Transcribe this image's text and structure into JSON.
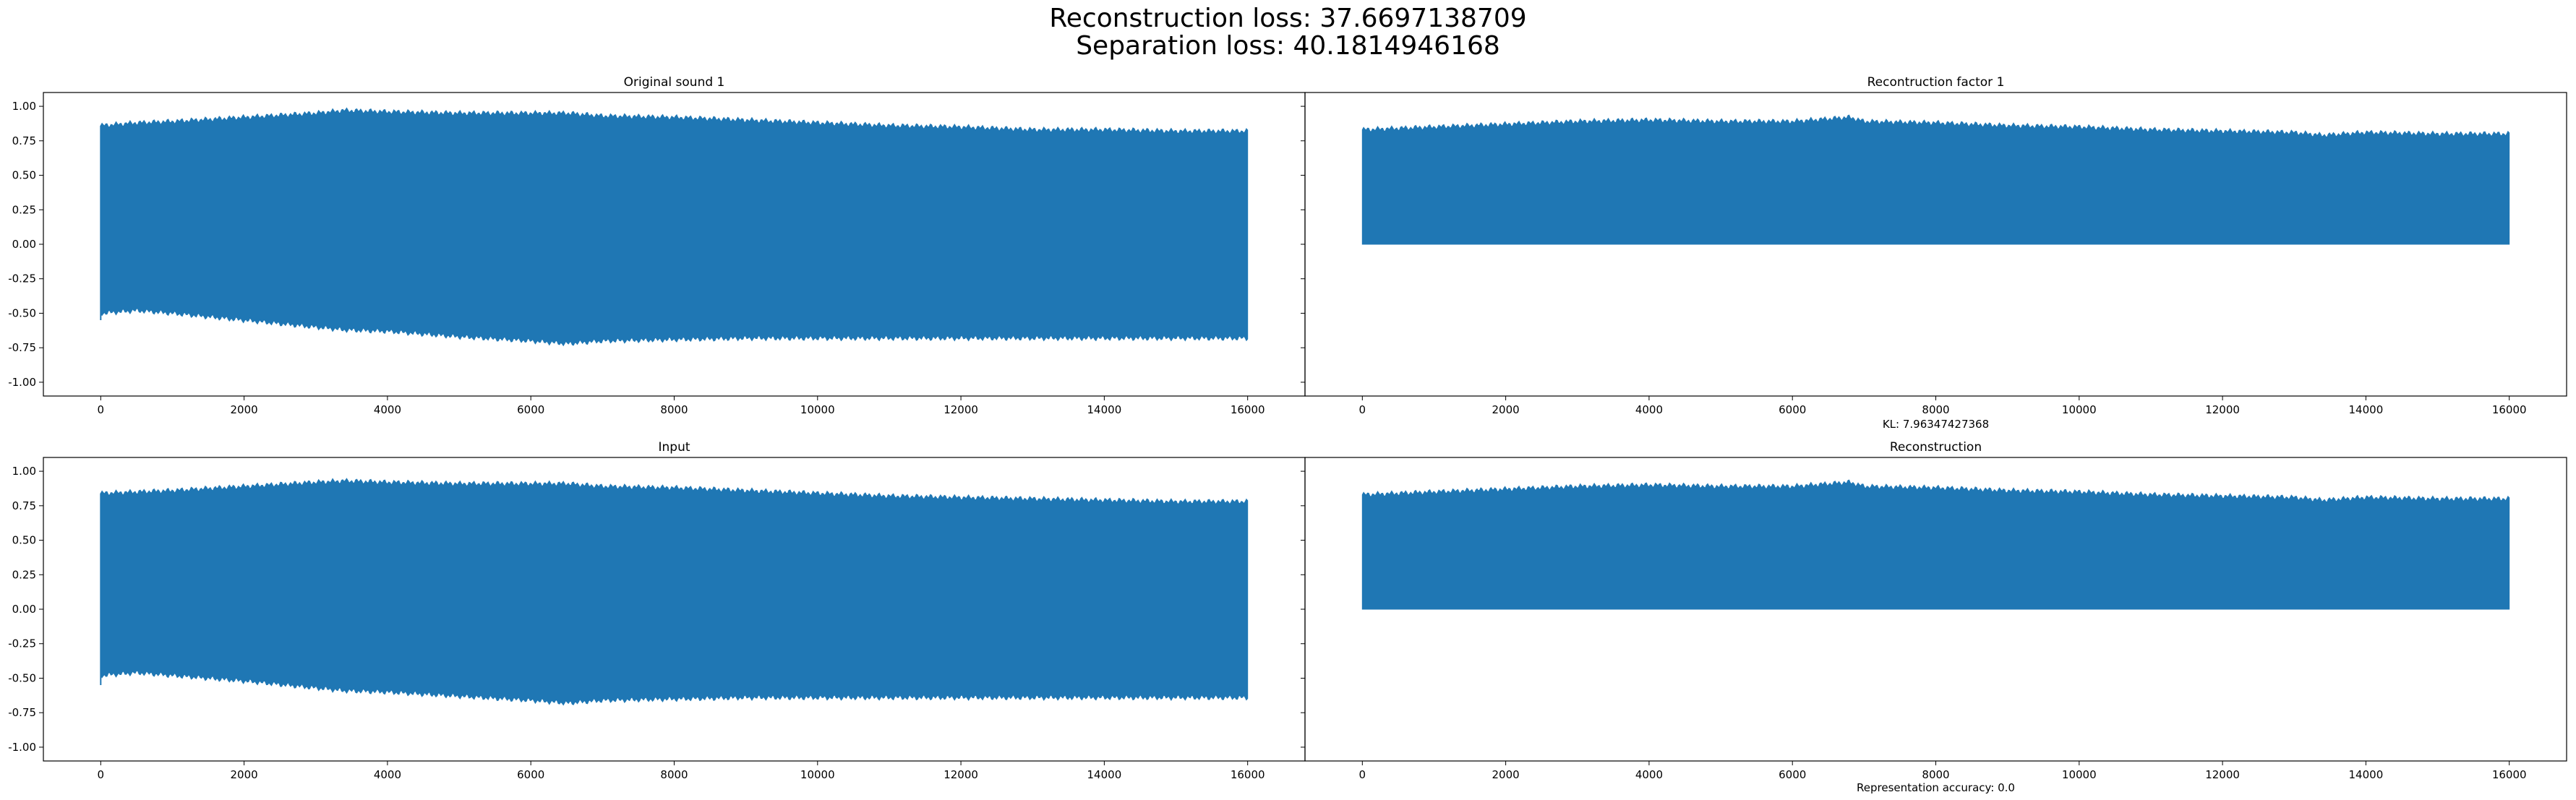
{
  "figure": {
    "title_line1": "Reconstruction loss: 37.6697138709",
    "title_line2": "Separation loss: 40.1814946168",
    "colors": {
      "series": "#1f77b4",
      "axes": "#000000"
    }
  },
  "chart_data": [
    {
      "type": "line",
      "title": "Original sound 1",
      "xlabel": "",
      "ylabel": "",
      "xlim": [
        -800,
        16800
      ],
      "ylim": [
        -1.1,
        1.1
      ],
      "xticks": [
        0,
        2000,
        4000,
        6000,
        8000,
        10000,
        12000,
        14000,
        16000
      ],
      "yticks": [
        -1.0,
        -0.75,
        -0.5,
        -0.25,
        0.0,
        0.25,
        0.5,
        0.75,
        1.0
      ],
      "x_range": [
        0,
        16000
      ],
      "envelope_x": [
        0,
        500,
        1000,
        2000,
        3000,
        3400,
        4000,
        5000,
        6000,
        6500,
        7000,
        8000,
        9000,
        10000,
        11000,
        12000,
        13000,
        14000,
        15000,
        16000
      ],
      "upper_envelope": [
        0.86,
        0.88,
        0.89,
        0.92,
        0.95,
        0.97,
        0.96,
        0.95,
        0.95,
        0.95,
        0.93,
        0.92,
        0.9,
        0.88,
        0.86,
        0.85,
        0.83,
        0.83,
        0.82,
        0.82
      ],
      "lower_envelope": [
        -0.5,
        -0.48,
        -0.5,
        -0.55,
        -0.6,
        -0.62,
        -0.63,
        -0.67,
        -0.7,
        -0.72,
        -0.7,
        -0.69,
        -0.68,
        -0.68,
        -0.68,
        -0.68,
        -0.68,
        -0.68,
        -0.68,
        -0.68
      ],
      "grid": false
    },
    {
      "type": "line",
      "title": "Recontruction factor 1",
      "xlabel": "KL: 7.96347427368",
      "ylabel": "",
      "xlim": [
        -800,
        16800
      ],
      "ylim": [
        -1.1,
        1.1
      ],
      "xticks": [
        0,
        2000,
        4000,
        6000,
        8000,
        10000,
        12000,
        14000,
        16000
      ],
      "yticks": [
        -1.0,
        -0.75,
        -0.5,
        -0.25,
        0.0,
        0.25,
        0.5,
        0.75,
        1.0
      ],
      "x_range": [
        0,
        16000
      ],
      "envelope_x": [
        0,
        1000,
        2000,
        3000,
        4000,
        5000,
        6000,
        6800,
        7000,
        8000,
        9000,
        10000,
        11000,
        12000,
        13000,
        13400,
        14000,
        15000,
        16000
      ],
      "upper_envelope": [
        0.83,
        0.85,
        0.87,
        0.89,
        0.9,
        0.89,
        0.89,
        0.92,
        0.89,
        0.88,
        0.86,
        0.85,
        0.83,
        0.82,
        0.81,
        0.79,
        0.81,
        0.8,
        0.8
      ],
      "lower_envelope": [
        0.0,
        0.0,
        0.0,
        0.0,
        0.0,
        0.0,
        0.0,
        0.0,
        0.0,
        0.0,
        0.0,
        0.0,
        0.0,
        0.0,
        0.0,
        0.0,
        0.0,
        0.0,
        0.0
      ],
      "grid": false
    },
    {
      "type": "line",
      "title": "Input",
      "xlabel": "",
      "ylabel": "",
      "xlim": [
        -800,
        16800
      ],
      "ylim": [
        -1.1,
        1.1
      ],
      "xticks": [
        0,
        2000,
        4000,
        6000,
        8000,
        10000,
        12000,
        14000,
        16000
      ],
      "yticks": [
        -1.0,
        -0.75,
        -0.5,
        -0.25,
        0.0,
        0.25,
        0.5,
        0.75,
        1.0
      ],
      "x_range": [
        0,
        16000
      ],
      "envelope_x": [
        0,
        500,
        1000,
        2000,
        3000,
        3400,
        4000,
        5000,
        6000,
        6500,
        7000,
        8000,
        9000,
        10000,
        11000,
        12000,
        13000,
        14000,
        15000,
        16000
      ],
      "upper_envelope": [
        0.84,
        0.85,
        0.86,
        0.89,
        0.92,
        0.93,
        0.92,
        0.91,
        0.91,
        0.91,
        0.89,
        0.88,
        0.86,
        0.84,
        0.82,
        0.81,
        0.8,
        0.79,
        0.78,
        0.78
      ],
      "lower_envelope": [
        -0.48,
        -0.46,
        -0.48,
        -0.52,
        -0.57,
        -0.59,
        -0.6,
        -0.63,
        -0.66,
        -0.68,
        -0.66,
        -0.65,
        -0.64,
        -0.64,
        -0.64,
        -0.64,
        -0.64,
        -0.64,
        -0.64,
        -0.64
      ],
      "grid": false
    },
    {
      "type": "line",
      "title": "Reconstruction",
      "xlabel": "Representation accuracy: 0.0",
      "ylabel": "",
      "xlim": [
        -800,
        16800
      ],
      "ylim": [
        -1.1,
        1.1
      ],
      "xticks": [
        0,
        2000,
        4000,
        6000,
        8000,
        10000,
        12000,
        14000,
        16000
      ],
      "yticks": [
        -1.0,
        -0.75,
        -0.5,
        -0.25,
        0.0,
        0.25,
        0.5,
        0.75,
        1.0
      ],
      "x_range": [
        0,
        16000
      ],
      "envelope_x": [
        0,
        1000,
        2000,
        3000,
        4000,
        5000,
        6000,
        6800,
        7000,
        8000,
        9000,
        10000,
        11000,
        12000,
        13000,
        13400,
        14000,
        15000,
        16000
      ],
      "upper_envelope": [
        0.83,
        0.85,
        0.87,
        0.89,
        0.9,
        0.89,
        0.89,
        0.92,
        0.89,
        0.88,
        0.86,
        0.85,
        0.83,
        0.82,
        0.81,
        0.79,
        0.81,
        0.8,
        0.8
      ],
      "lower_envelope": [
        0.0,
        0.0,
        0.0,
        0.0,
        0.0,
        0.0,
        0.0,
        0.0,
        0.0,
        0.0,
        0.0,
        0.0,
        0.0,
        0.0,
        0.0,
        0.0,
        0.0,
        0.0,
        0.0
      ],
      "grid": false
    }
  ]
}
